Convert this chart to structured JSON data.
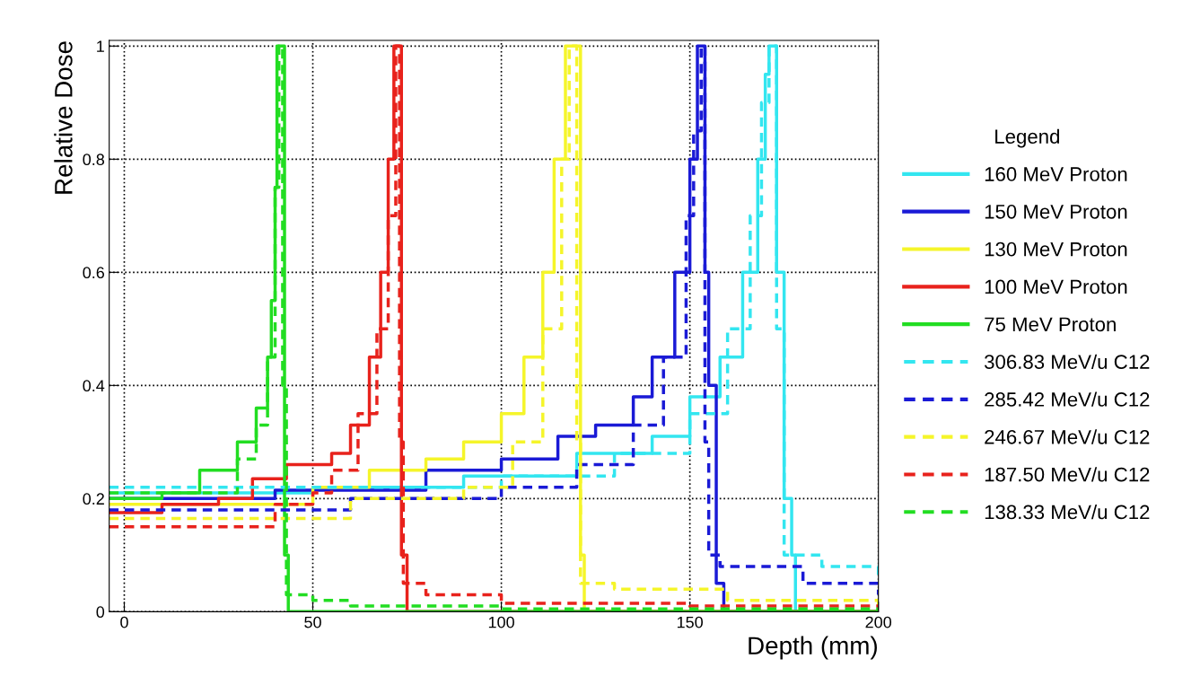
{
  "chart_data": {
    "type": "step",
    "xlabel": "Depth (mm)",
    "ylabel": "Relative Dose",
    "legend_title": "Legend",
    "legend": "right",
    "grid": true,
    "xlim": [
      -4,
      200
    ],
    "xticks": [
      0,
      50,
      100,
      150,
      200
    ],
    "ylim": [
      0,
      1.01
    ],
    "yticks": [
      0,
      0.2,
      0.4,
      0.6,
      0.8,
      1
    ],
    "series": [
      {
        "name": "160 MeV Proton",
        "color": "#33e6f0",
        "line_style": "solid",
        "x": [
          -4,
          0,
          50,
          90,
          120,
          140,
          150,
          158,
          164,
          168,
          170,
          171,
          173,
          175,
          177,
          178,
          200
        ],
        "values": [
          0.21,
          0.21,
          0.22,
          0.24,
          0.28,
          0.31,
          0.38,
          0.45,
          0.6,
          0.8,
          0.95,
          1.0,
          0.6,
          0.2,
          0.1,
          0,
          0
        ]
      },
      {
        "name": "150 MeV Proton",
        "color": "#1a1ad6",
        "line_style": "solid",
        "x": [
          -4,
          0,
          40,
          80,
          100,
          115,
          125,
          135,
          140,
          146,
          150,
          152,
          154,
          155,
          157,
          159,
          200
        ],
        "values": [
          0.2,
          0.2,
          0.215,
          0.25,
          0.27,
          0.31,
          0.33,
          0.38,
          0.45,
          0.6,
          0.8,
          1.0,
          0.6,
          0.4,
          0.05,
          0,
          0
        ]
      },
      {
        "name": "130 MeV Proton",
        "color": "#f5f52a",
        "line_style": "solid",
        "x": [
          -4,
          0,
          50,
          65,
          80,
          90,
          100,
          106,
          111,
          114,
          117,
          119,
          121,
          122,
          200
        ],
        "values": [
          0.19,
          0.19,
          0.22,
          0.25,
          0.27,
          0.3,
          0.35,
          0.45,
          0.6,
          0.8,
          1.0,
          1.0,
          0.1,
          0,
          0
        ]
      },
      {
        "name": "100 MeV Proton",
        "color": "#e8221c",
        "line_style": "solid",
        "x": [
          -4,
          0,
          10,
          25,
          34,
          43,
          55,
          60,
          65,
          68,
          70,
          71.5,
          73,
          73.5,
          75,
          200
        ],
        "values": [
          0.175,
          0.175,
          0.19,
          0.2,
          0.235,
          0.26,
          0.28,
          0.33,
          0.45,
          0.6,
          0.8,
          1.0,
          1.0,
          0.1,
          0,
          0
        ]
      },
      {
        "name": "75 MeV Proton",
        "color": "#22dd22",
        "line_style": "solid",
        "x": [
          -4,
          0,
          10,
          20,
          30,
          35,
          38,
          39,
          40,
          40.5,
          42.5,
          43.5,
          200
        ],
        "values": [
          0.2,
          0.2,
          0.21,
          0.25,
          0.3,
          0.36,
          0.45,
          0.55,
          0.75,
          1.0,
          0.1,
          0,
          0
        ]
      },
      {
        "name": "306.83 MeV/u C12",
        "color": "#33e6f0",
        "line_style": "dashed",
        "x": [
          -4,
          0,
          50,
          100,
          130,
          150,
          160,
          166,
          169,
          171,
          173,
          175,
          185,
          200
        ],
        "values": [
          0.22,
          0.22,
          0.22,
          0.24,
          0.28,
          0.35,
          0.5,
          0.7,
          0.9,
          1.0,
          0.5,
          0.1,
          0.08,
          0.06
        ]
      },
      {
        "name": "285.42 MeV/u C12",
        "color": "#1a1ad6",
        "line_style": "dashed",
        "x": [
          -4,
          0,
          60,
          100,
          120,
          135,
          143,
          149,
          151,
          153,
          154,
          155,
          158,
          180,
          200
        ],
        "values": [
          0.18,
          0.18,
          0.2,
          0.22,
          0.26,
          0.33,
          0.45,
          0.7,
          0.85,
          1.0,
          0.3,
          0.1,
          0.08,
          0.05,
          0.03
        ]
      },
      {
        "name": "246.67 MeV/u C12",
        "color": "#f5f52a",
        "line_style": "dashed",
        "x": [
          -4,
          0,
          60,
          90,
          103,
          111,
          116,
          118,
          120,
          121,
          130,
          160,
          200
        ],
        "values": [
          0.165,
          0.165,
          0.2,
          0.22,
          0.3,
          0.5,
          0.8,
          1.0,
          0.3,
          0.05,
          0.04,
          0.02,
          0.01
        ]
      },
      {
        "name": "187.50 MeV/u C12",
        "color": "#e8221c",
        "line_style": "dashed",
        "x": [
          -4,
          0,
          40,
          50,
          55,
          62,
          67,
          70,
          72,
          73,
          74,
          80,
          100,
          150,
          200
        ],
        "values": [
          0.15,
          0.15,
          0.19,
          0.21,
          0.25,
          0.35,
          0.5,
          0.7,
          1.0,
          0.3,
          0.05,
          0.03,
          0.015,
          0.01,
          0.005
        ]
      },
      {
        "name": "138.33 MeV/u C12",
        "color": "#22dd22",
        "line_style": "dashed",
        "x": [
          -4,
          0,
          30,
          35,
          38,
          40,
          41,
          42,
          43,
          50,
          60,
          100,
          200
        ],
        "values": [
          0.21,
          0.21,
          0.27,
          0.33,
          0.45,
          0.75,
          1.0,
          0.4,
          0.03,
          0.02,
          0.01,
          0.005,
          0.005
        ]
      }
    ]
  }
}
